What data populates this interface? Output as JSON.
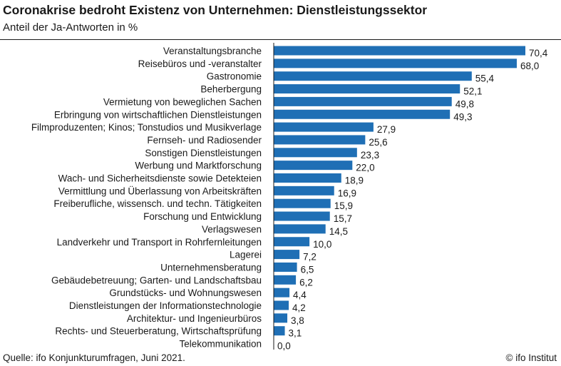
{
  "header": {
    "title": "Coronakrise bedroht Existenz von Unternehmen: Dienstleistungssektor",
    "subtitle": "Anteil der Ja-Antworten in %"
  },
  "footer": {
    "source": "Quelle: ifo Konjunkturumfragen, Juni 2021.",
    "copyright": "© ifo Institut"
  },
  "colors": {
    "bar": "#1f6fb5",
    "text": "#1a1a1a"
  },
  "chart_data": {
    "type": "bar",
    "orientation": "horizontal",
    "xlim": [
      0,
      72
    ],
    "grid": false,
    "categories": [
      "Veranstaltungsbranche",
      "Reisebüros und -veranstalter",
      "Gastronomie",
      "Beherbergung",
      "Vermietung von beweglichen Sachen",
      "Erbringung von wirtschaftlichen Dienstleistungen",
      "Filmproduzenten; Kinos; Tonstudios und Musikverlage",
      "Fernseh- und Radiosender",
      "Sonstigen Dienstleistungen",
      "Werbung und Marktforschung",
      "Wach- und Sicherheitsdienste sowie Detekteien",
      "Vermittlung und Überlassung von Arbeitskräften",
      "Freiberufliche, wissensch. und techn. Tätigkeiten",
      "Forschung und Entwicklung",
      "Verlagswesen",
      "Landverkehr und Transport in Rohrfernleitungen",
      "Lagerei",
      "Unternehmensberatung",
      "Gebäudebetreuung; Garten- und Landschaftsbau",
      "Grundstücks- und Wohnungswesen",
      "Dienstleistungen der Informationstechnologie",
      "Architektur- und Ingenieurbüros",
      "Rechts- und Steuerberatung, Wirtschaftsprüfung",
      "Telekommunikation"
    ],
    "values": [
      70.4,
      68.0,
      55.4,
      52.1,
      49.8,
      49.3,
      27.9,
      25.6,
      23.3,
      22.0,
      18.9,
      16.9,
      15.9,
      15.7,
      14.5,
      10.0,
      7.2,
      6.5,
      6.2,
      4.4,
      4.2,
      3.8,
      3.1,
      0.0
    ],
    "value_labels": [
      "70,4",
      "68,0",
      "55,4",
      "52,1",
      "49,8",
      "49,3",
      "27,9",
      "25,6",
      "23,3",
      "22,0",
      "18,9",
      "16,9",
      "15,9",
      "15,7",
      "14,5",
      "10,0",
      "7,2",
      "6,5",
      "6,2",
      "4,4",
      "4,2",
      "3,8",
      "3,1",
      "0,0"
    ]
  }
}
